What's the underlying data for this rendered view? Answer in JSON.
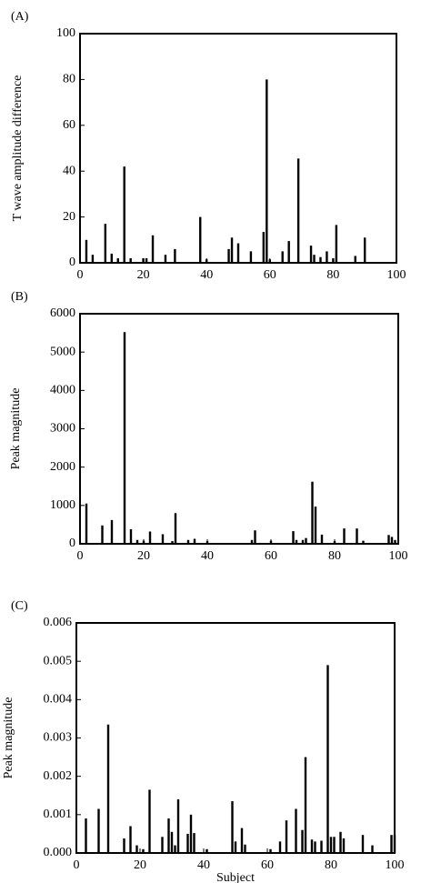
{
  "chart_data": [
    {
      "type": "bar",
      "panel_label": "(A)",
      "ylabel": "T wave amplitude difference",
      "color": "#000000",
      "x": [
        2,
        4,
        8,
        10,
        12,
        14,
        16,
        20,
        21,
        23,
        27,
        30,
        38,
        40,
        47,
        48,
        50,
        54,
        58,
        59,
        60,
        64,
        66,
        69,
        73,
        74,
        76,
        78,
        80,
        81,
        87,
        90
      ],
      "values": [
        10,
        3.5,
        17,
        4,
        2,
        42,
        2,
        2,
        2,
        12,
        3.5,
        6,
        20,
        1.5,
        6,
        11,
        8.5,
        5,
        13.5,
        80,
        1.5,
        5,
        9.5,
        45.5,
        7.5,
        3.5,
        2.5,
        5,
        2,
        16.5,
        3,
        11
      ],
      "xlim": [
        0,
        100
      ],
      "ylim": [
        0,
        100
      ],
      "xticks": [
        0,
        20,
        40,
        60,
        80,
        100
      ],
      "yticks": [
        0,
        20,
        40,
        60,
        80,
        100
      ]
    },
    {
      "type": "bar",
      "panel_label": "(B)",
      "ylabel": "Peak magnitude",
      "color": "#000000",
      "x": [
        2,
        7,
        10,
        14,
        16,
        18,
        20,
        22,
        26,
        29,
        30,
        34,
        36,
        40,
        54,
        55,
        60,
        67,
        68,
        70,
        71,
        73,
        74,
        76,
        80,
        83,
        87,
        89,
        97,
        98,
        99
      ],
      "values": [
        1050,
        480,
        620,
        5520,
        380,
        100,
        80,
        320,
        250,
        70,
        800,
        100,
        130,
        70,
        100,
        350,
        80,
        330,
        100,
        100,
        150,
        1620,
        970,
        240,
        70,
        400,
        400,
        80,
        230,
        180,
        100
      ],
      "xlim": [
        0,
        100
      ],
      "ylim": [
        0,
        6000
      ],
      "xticks": [
        0,
        20,
        40,
        60,
        80,
        100
      ],
      "yticks": [
        0,
        1000,
        2000,
        3000,
        4000,
        5000,
        6000
      ]
    },
    {
      "type": "bar",
      "panel_label": "(C)",
      "ylabel": "Peak magnitude",
      "xlabel": "Subject",
      "color": "#000000",
      "x": [
        3,
        7,
        10,
        15,
        17,
        19,
        21,
        23,
        27,
        29,
        30,
        31,
        32,
        35,
        36,
        37,
        41,
        49,
        50,
        52,
        53,
        61,
        64,
        66,
        69,
        71,
        72,
        74,
        75,
        77,
        79,
        80,
        81,
        83,
        84,
        90,
        93,
        99,
        100
      ],
      "values": [
        0.0009,
        0.00115,
        0.00335,
        0.00038,
        0.0007,
        0.0002,
        0.0001,
        0.00165,
        0.00042,
        0.0009,
        0.00055,
        0.0002,
        0.0014,
        0.0005,
        0.001,
        0.00052,
        0.0001,
        0.00135,
        0.0003,
        0.00065,
        0.00022,
        0.0001,
        0.0003,
        0.00085,
        0.00115,
        0.0006,
        0.0025,
        0.00035,
        0.0003,
        0.00032,
        0.0049,
        0.00042,
        0.00042,
        0.00055,
        0.00038,
        0.00047,
        0.0002,
        0.00047,
        0.00047
      ],
      "xlim": [
        0,
        100
      ],
      "ylim": [
        0,
        0.006
      ],
      "xticks": [
        0,
        20,
        40,
        60,
        80,
        100
      ],
      "yticks": [
        {
          "value": 0,
          "label": "0.000"
        },
        {
          "value": 0.001,
          "label": "0.001"
        },
        {
          "value": 0.002,
          "label": "0.002"
        },
        {
          "value": 0.003,
          "label": "0.003"
        },
        {
          "value": 0.004,
          "label": "0.004"
        },
        {
          "value": 0.005,
          "label": "0.005"
        },
        {
          "value": 0.006,
          "label": "0.006"
        }
      ]
    }
  ]
}
